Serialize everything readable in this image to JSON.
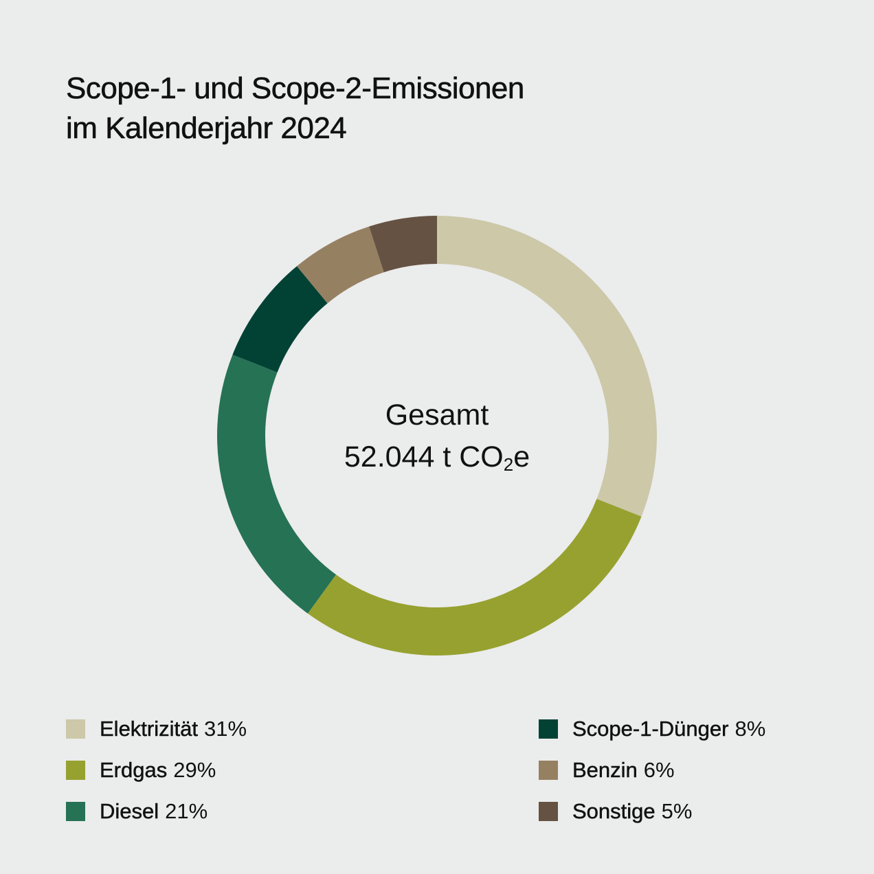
{
  "title": {
    "line1": "Scope-1- und Scope-2-Emissionen",
    "line2": "im Kalenderjahr 2024"
  },
  "center": {
    "label": "Gesamt",
    "value_prefix": "52.044 t CO",
    "value_sub": "2",
    "value_suffix": "e"
  },
  "chart_data": {
    "type": "pie",
    "style": "donut",
    "title": "Scope-1- und Scope-2-Emissionen im Kalenderjahr 2024",
    "total_label": "Gesamt 52.044 t CO2e",
    "start": "top",
    "direction": "clockwise",
    "categories": [
      "Elektrizität",
      "Erdgas",
      "Diesel",
      "Scope-1-Dünger",
      "Benzin",
      "Sonstige"
    ],
    "values": [
      31,
      29,
      21,
      8,
      6,
      5
    ],
    "labels": [
      "31%",
      "29%",
      "21%",
      "8%",
      "6%",
      "5%"
    ],
    "colors": [
      "#ccc8a8",
      "#97a12f",
      "#267255",
      "#014235",
      "#968062",
      "#655242"
    ]
  },
  "legend": [
    {
      "name": "Elektrizität",
      "pct": "31%",
      "color": "#ccc8a8"
    },
    {
      "name": "Erdgas",
      "pct": "29%",
      "color": "#97a12f"
    },
    {
      "name": "Diesel",
      "pct": "21%",
      "color": "#267255"
    },
    {
      "name": "Scope-1-Dünger",
      "pct": "8%",
      "color": "#014235"
    },
    {
      "name": "Benzin",
      "pct": "6%",
      "color": "#968062"
    },
    {
      "name": "Sonstige",
      "pct": "5%",
      "color": "#655242"
    }
  ]
}
